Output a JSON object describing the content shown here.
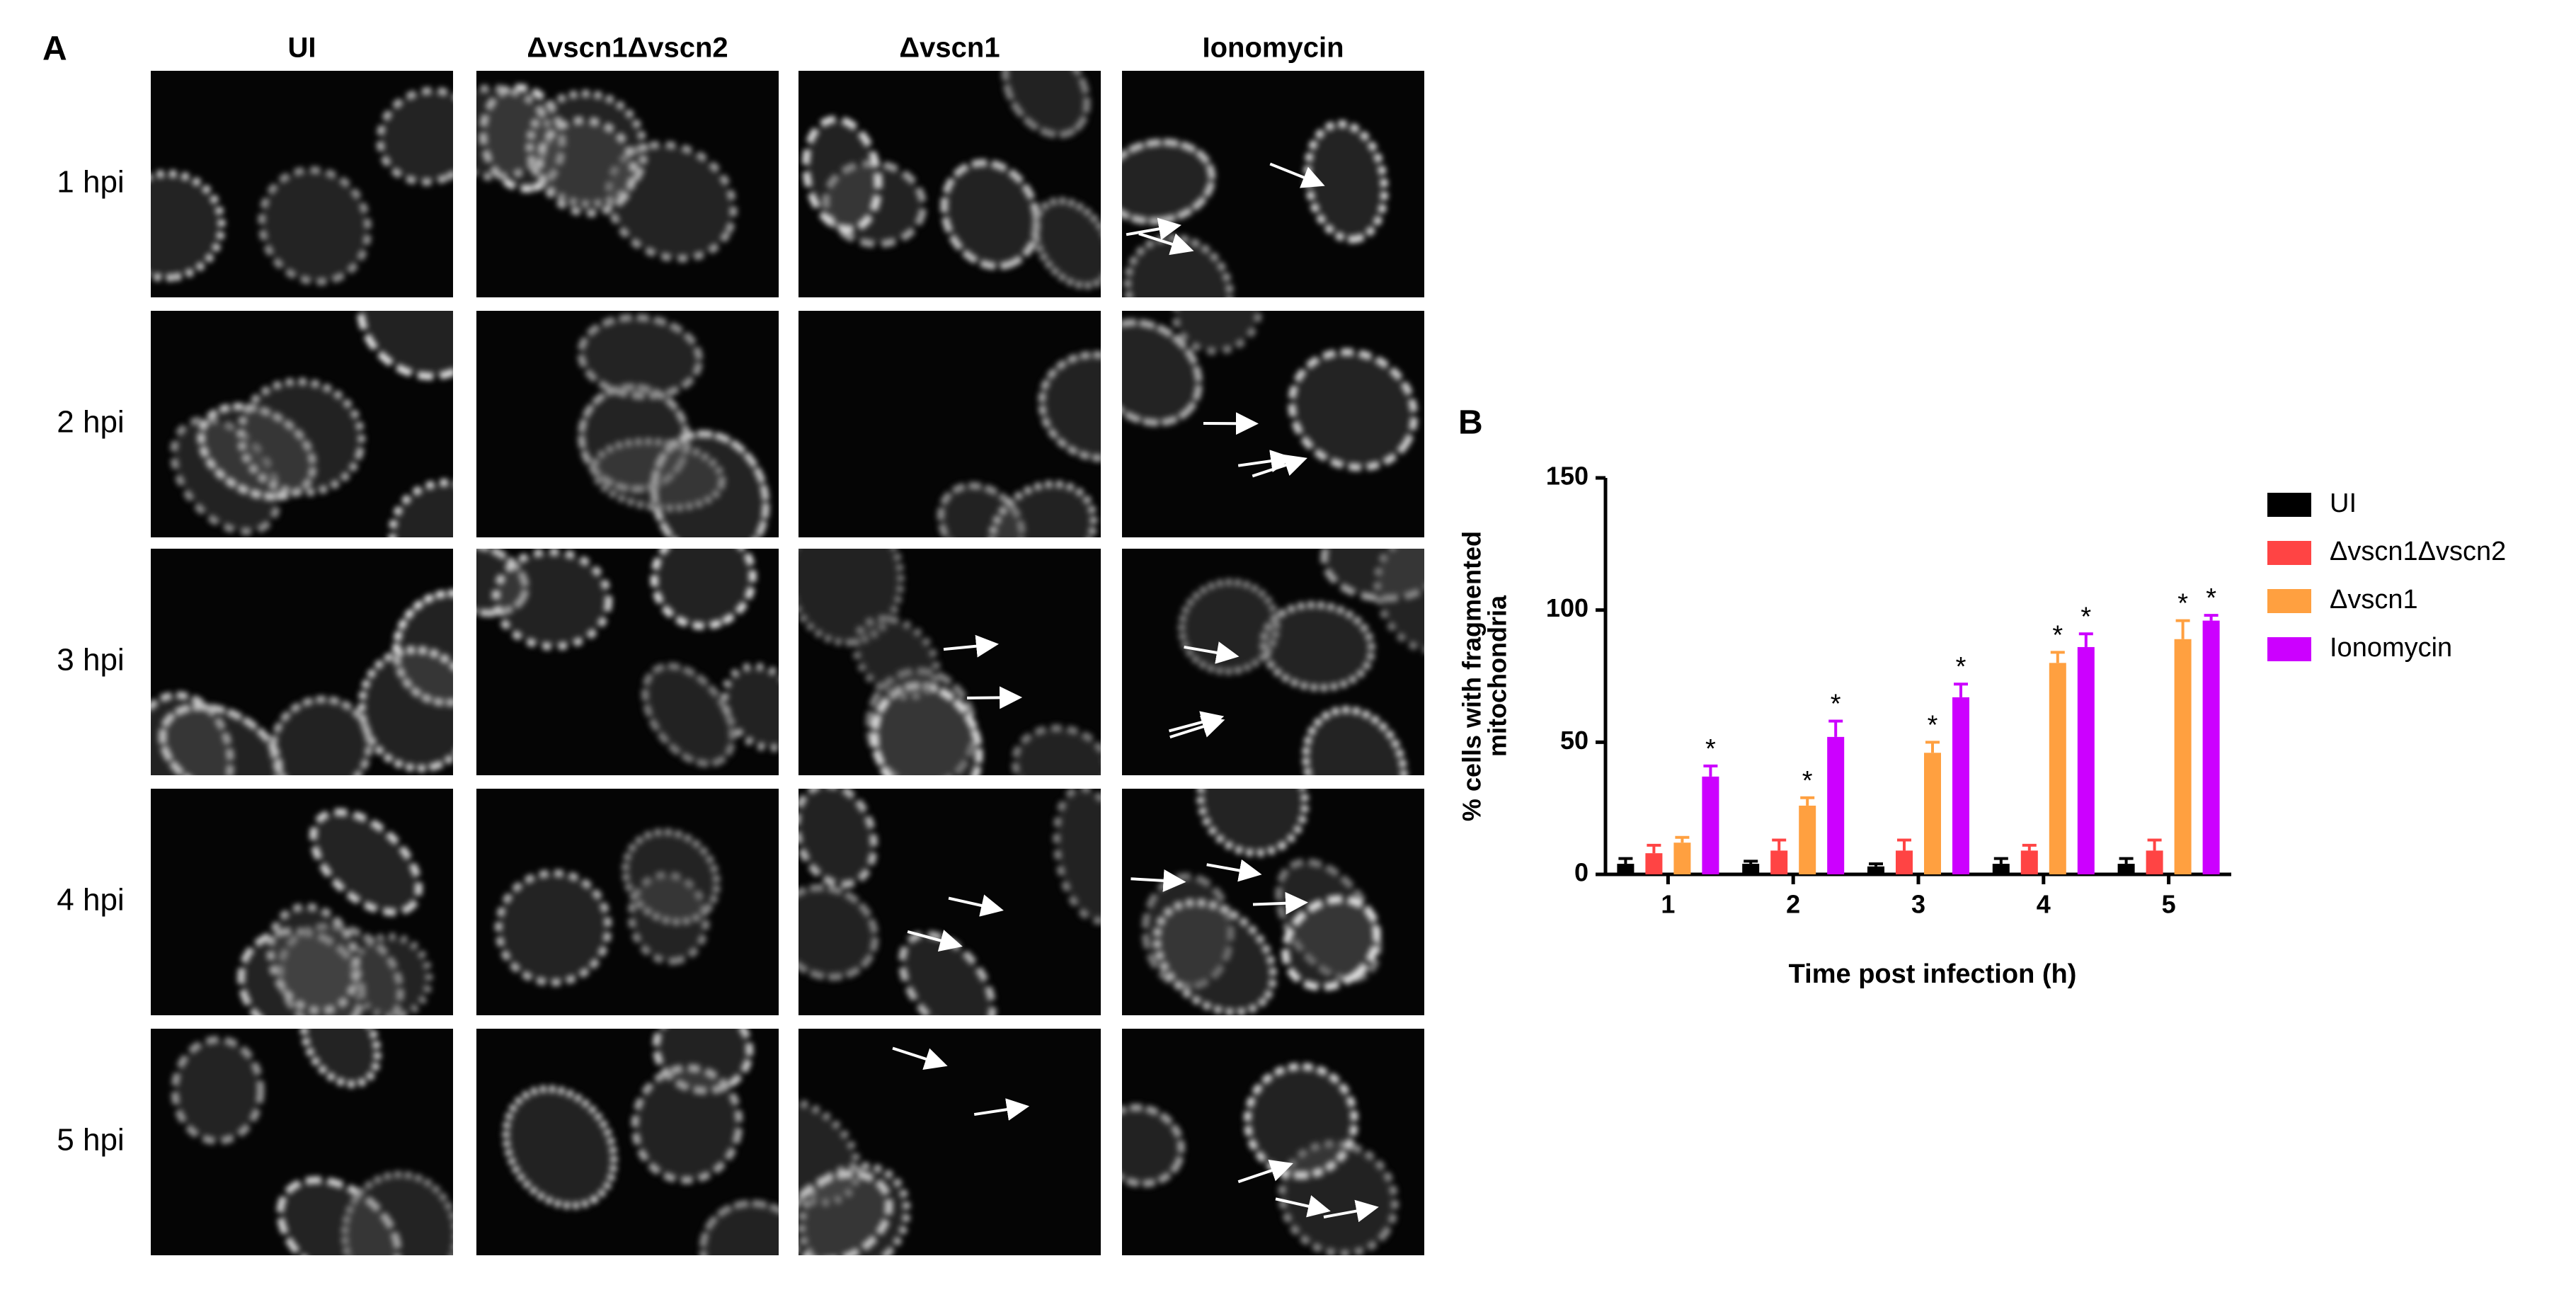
{
  "figure": {
    "panel_a_label": "A",
    "panel_b_label": "B",
    "columns": [
      "UI",
      "Δvscn1Δvscn2",
      "Δvscn1",
      "Ionomycin"
    ],
    "rows": [
      "1 hpi",
      "2 hpi",
      "3 hpi",
      "4 hpi",
      "5 hpi"
    ]
  },
  "chart_data": {
    "type": "bar",
    "x_label": "Time post infection (h)",
    "y_label": [
      "% cells with fragmented",
      "mitochondria"
    ],
    "categories": [
      "1",
      "2",
      "3",
      "4",
      "5"
    ],
    "ylim": [
      0,
      150
    ],
    "yticks": [
      0,
      50,
      100,
      150
    ],
    "legend": "right",
    "series": [
      {
        "name": "UI",
        "color": "#000000",
        "values": [
          4,
          4,
          3,
          4,
          4
        ],
        "errors": [
          2,
          1,
          1,
          2,
          2
        ]
      },
      {
        "name": "Δvscn1Δvscn2",
        "color": "#ff4444",
        "values": [
          8,
          9,
          9,
          9,
          9
        ],
        "errors": [
          3,
          4,
          4,
          2,
          4
        ]
      },
      {
        "name": "Δvscn1",
        "color": "#ffa040",
        "values": [
          12,
          26,
          46,
          80,
          89
        ],
        "errors": [
          2,
          3,
          4,
          4,
          7
        ],
        "markers": [
          null,
          "*",
          "*",
          "*",
          "*"
        ]
      },
      {
        "name": "Ionomycin",
        "color": "#cc00ff",
        "values": [
          37,
          52,
          67,
          86,
          96
        ],
        "errors": [
          4,
          6,
          5,
          5,
          2
        ],
        "markers": [
          "*",
          "*",
          "*",
          "*",
          "*"
        ]
      }
    ]
  }
}
